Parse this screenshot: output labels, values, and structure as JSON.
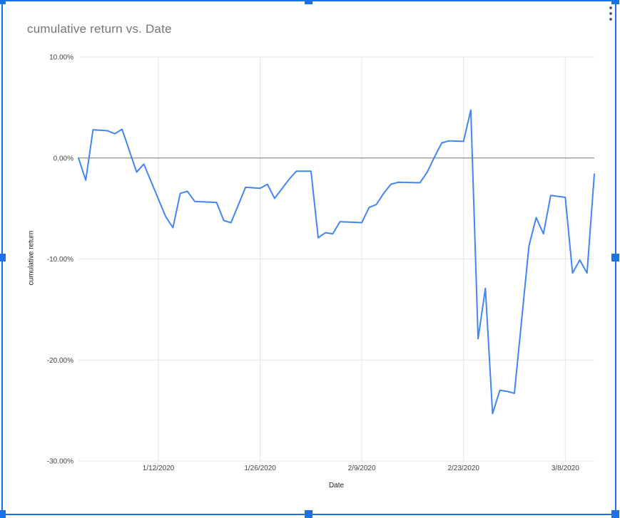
{
  "chart_data": {
    "type": "line",
    "title": "cumulative return vs. Date",
    "xlabel": "Date",
    "ylabel": "cumulative return",
    "ylim": [
      -30,
      10
    ],
    "x_domain": [
      "2020-01-01",
      "2020-03-12"
    ],
    "grid": true,
    "legend": "none",
    "y_ticks": [
      {
        "value": 10,
        "label": "10.00%"
      },
      {
        "value": 0,
        "label": "0.00%"
      },
      {
        "value": -10,
        "label": "-10.00%"
      },
      {
        "value": -20,
        "label": "-20.00%"
      },
      {
        "value": -30,
        "label": "-30.00%"
      }
    ],
    "x_ticks": [
      {
        "date": "2020-01-12",
        "label": "1/12/2020"
      },
      {
        "date": "2020-01-26",
        "label": "1/26/2020"
      },
      {
        "date": "2020-02-09",
        "label": "2/9/2020"
      },
      {
        "date": "2020-02-23",
        "label": "2/23/2020"
      },
      {
        "date": "2020-03-08",
        "label": "3/8/2020"
      }
    ],
    "series": [
      {
        "name": "cumulative return",
        "points": [
          [
            "2020-01-01",
            0.0
          ],
          [
            "2020-01-02",
            -2.2
          ],
          [
            "2020-01-03",
            2.8
          ],
          [
            "2020-01-05",
            2.7
          ],
          [
            "2020-01-06",
            2.4
          ],
          [
            "2020-01-07",
            2.85
          ],
          [
            "2020-01-09",
            -1.4
          ],
          [
            "2020-01-10",
            -0.6
          ],
          [
            "2020-01-13",
            -5.8
          ],
          [
            "2020-01-14",
            -6.9
          ],
          [
            "2020-01-15",
            -3.5
          ],
          [
            "2020-01-16",
            -3.3
          ],
          [
            "2020-01-17",
            -4.3
          ],
          [
            "2020-01-20",
            -4.4
          ],
          [
            "2020-01-21",
            -6.2
          ],
          [
            "2020-01-22",
            -6.4
          ],
          [
            "2020-01-24",
            -2.9
          ],
          [
            "2020-01-26",
            -3.0
          ],
          [
            "2020-01-27",
            -2.6
          ],
          [
            "2020-01-28",
            -4.0
          ],
          [
            "2020-01-30",
            -2.1
          ],
          [
            "2020-01-31",
            -1.3
          ],
          [
            "2020-02-02",
            -1.3
          ],
          [
            "2020-02-03",
            -7.9
          ],
          [
            "2020-02-04",
            -7.4
          ],
          [
            "2020-02-05",
            -7.5
          ],
          [
            "2020-02-06",
            -6.3
          ],
          [
            "2020-02-09",
            -6.4
          ],
          [
            "2020-02-10",
            -4.9
          ],
          [
            "2020-02-11",
            -4.6
          ],
          [
            "2020-02-12",
            -3.5
          ],
          [
            "2020-02-13",
            -2.6
          ],
          [
            "2020-02-14",
            -2.4
          ],
          [
            "2020-02-17",
            -2.45
          ],
          [
            "2020-02-18",
            -1.4
          ],
          [
            "2020-02-19",
            0.1
          ],
          [
            "2020-02-20",
            1.5
          ],
          [
            "2020-02-21",
            1.7
          ],
          [
            "2020-02-23",
            1.65
          ],
          [
            "2020-02-24",
            4.75
          ],
          [
            "2020-02-25",
            -17.9
          ],
          [
            "2020-02-26",
            -12.9
          ],
          [
            "2020-02-27",
            -25.3
          ],
          [
            "2020-02-28",
            -23.0
          ],
          [
            "2020-02-29",
            -23.1
          ],
          [
            "2020-03-01",
            -23.3
          ],
          [
            "2020-03-03",
            -8.7
          ],
          [
            "2020-03-04",
            -5.9
          ],
          [
            "2020-03-05",
            -7.5
          ],
          [
            "2020-03-06",
            -3.7
          ],
          [
            "2020-03-08",
            -3.9
          ],
          [
            "2020-03-09",
            -11.4
          ],
          [
            "2020-03-10",
            -10.1
          ],
          [
            "2020-03-11",
            -11.4
          ],
          [
            "2020-03-12",
            -1.6
          ]
        ]
      }
    ],
    "colors": {
      "series": "#4285f4",
      "grid": "#e6e6e6",
      "baseline": "#757575",
      "tick_text": "#444444",
      "title_text": "#757575"
    }
  },
  "menu": {
    "icon": "three-dot-vertical-menu",
    "dot_color": "#5f6368"
  },
  "selection": {
    "state": "chart-selected",
    "color": "#1a73e8"
  }
}
